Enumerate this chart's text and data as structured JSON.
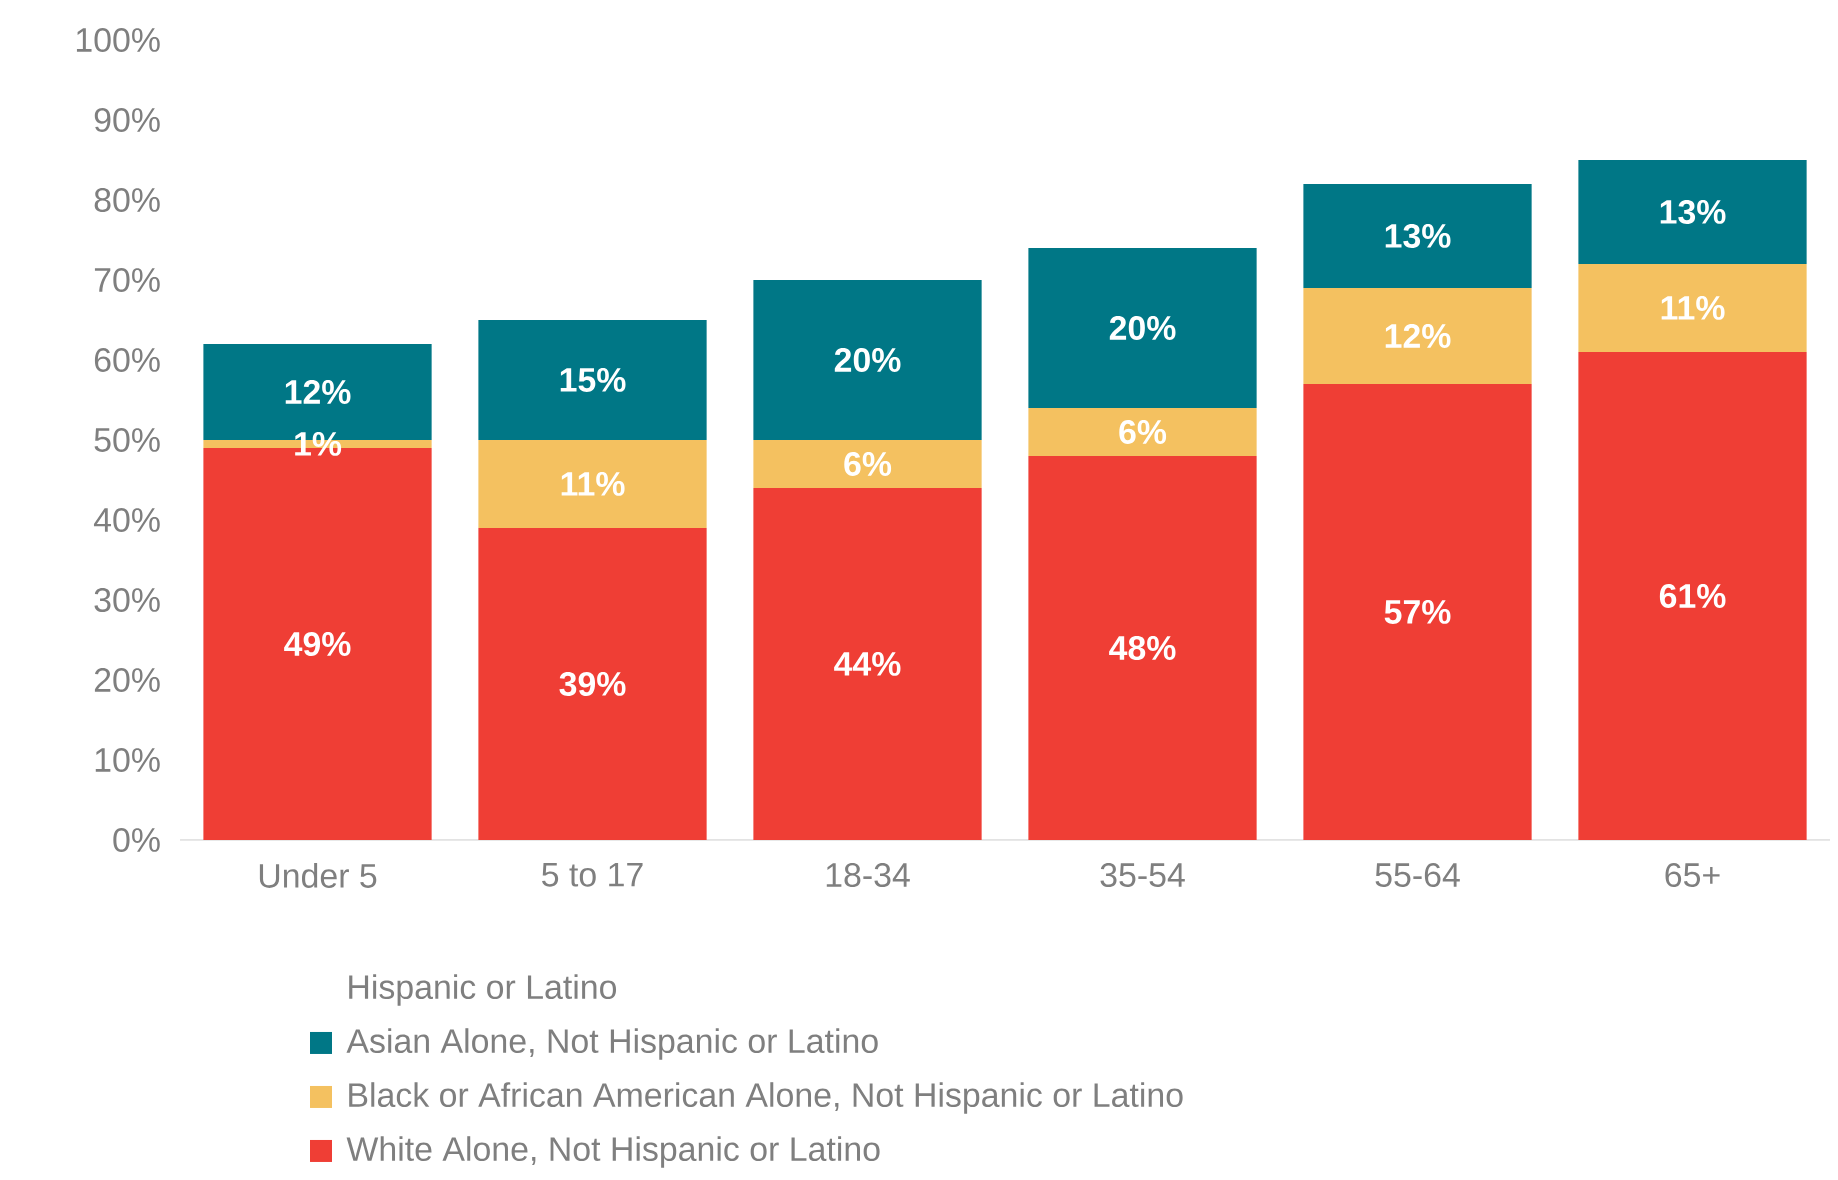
{
  "chart_data": {
    "type": "bar",
    "stacked": true,
    "categories": [
      "Under 5",
      "5 to 17",
      "18-34",
      "35-54",
      "55-64",
      "65+"
    ],
    "series": [
      {
        "name": "White Alone, Not Hispanic or Latino",
        "color": "#ef3e35",
        "values": [
          49,
          39,
          44,
          48,
          57,
          61
        ],
        "value_labels": [
          "49%",
          "39%",
          "44%",
          "48%",
          "57%",
          "61%"
        ]
      },
      {
        "name": "Black or African American Alone, Not Hispanic or Latino",
        "color": "#f4c160",
        "values": [
          1,
          11,
          6,
          6,
          12,
          11
        ],
        "value_labels": [
          "1%",
          "11%",
          "6%",
          "6%",
          "12%",
          "11%"
        ]
      },
      {
        "name": "Asian Alone, Not Hispanic or Latino",
        "color": "#007786",
        "values": [
          12,
          15,
          20,
          20,
          13,
          13
        ],
        "value_labels": [
          "12%",
          "15%",
          "20%",
          "20%",
          "13%",
          "13%"
        ]
      }
    ],
    "legend_title": "Hispanic or Latino",
    "legend": "bottom",
    "grid": false,
    "ylim": [
      0,
      100
    ],
    "yticks": [
      {
        "value": 0,
        "label": "0%"
      },
      {
        "value": 10,
        "label": "10%"
      },
      {
        "value": 20,
        "label": "20%"
      },
      {
        "value": 30,
        "label": "30%"
      },
      {
        "value": 40,
        "label": "40%"
      },
      {
        "value": 50,
        "label": "50%"
      },
      {
        "value": 60,
        "label": "60%"
      },
      {
        "value": 70,
        "label": "70%"
      },
      {
        "value": 80,
        "label": "80%"
      },
      {
        "value": 90,
        "label": "90%"
      },
      {
        "value": 100,
        "label": "100%"
      }
    ]
  }
}
